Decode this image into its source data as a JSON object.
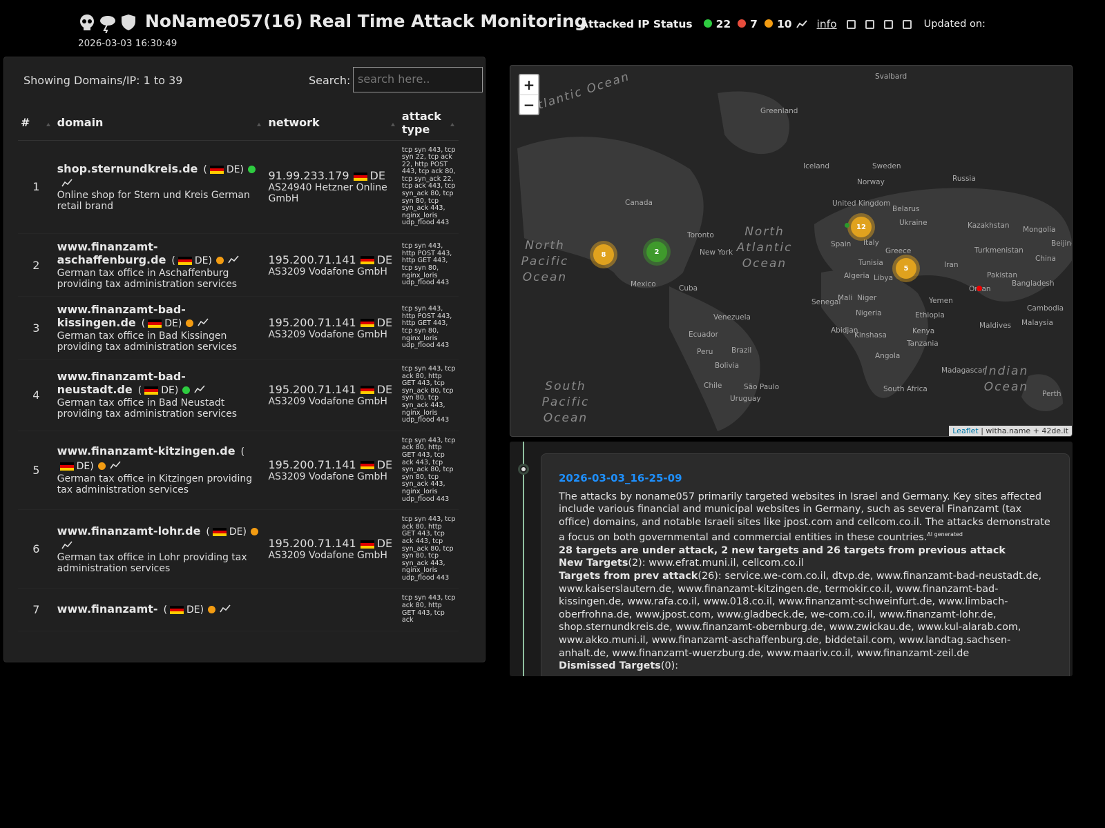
{
  "header": {
    "title": "NoName057(16) Real Time Attack Monitoring",
    "updated_date": "2026-03-03 16:30:49",
    "status_label": "Attacked IP Status",
    "status": [
      {
        "color": "#2ecc40",
        "count": 22
      },
      {
        "color": "#e74c3c",
        "count": 7
      },
      {
        "color": "#f39c12",
        "count": 10
      }
    ],
    "info": "info",
    "updated_label": "Updated on:"
  },
  "table": {
    "showing": "Showing Domains/IP: 1 to 39",
    "search_label": "Search:",
    "search_placeholder": "search here..",
    "columns": [
      "#",
      "domain",
      "network",
      "attack type"
    ],
    "rows": [
      {
        "num": 1,
        "domain": "shop.sternundkreis.de",
        "country": "DE",
        "status_color": "#2ecc40",
        "description": "Online shop for Stern und Kreis German retail brand",
        "ip": "91.99.233.179",
        "ip_country": "DE",
        "asn": "AS24940 Hetzner Online GmbH",
        "attack": "tcp syn 443, tcp syn 22, tcp ack 22, http POST 443, tcp ack 80, tcp syn_ack 22, tcp ack 443, tcp syn_ack 80, tcp syn 80, tcp syn_ack 443, nginx_loris udp_flood 443"
      },
      {
        "num": 2,
        "domain": "www.finanzamt-aschaffenburg.de",
        "country": "DE",
        "status_color": "#f39c12",
        "description": "German tax office in Aschaffenburg providing tax administration services",
        "ip": "195.200.71.141",
        "ip_country": "DE",
        "asn": "AS3209 Vodafone GmbH",
        "attack": "tcp syn 443, http POST 443, http GET 443, tcp syn 80, nginx_loris udp_flood 443"
      },
      {
        "num": 3,
        "domain": "www.finanzamt-bad-kissingen.de",
        "country": "DE",
        "status_color": "#f39c12",
        "description": "German tax office in Bad Kissingen providing tax administration services",
        "ip": "195.200.71.141",
        "ip_country": "DE",
        "asn": "AS3209 Vodafone GmbH",
        "attack": "tcp syn 443, http POST 443, http GET 443, tcp syn 80, nginx_loris udp_flood 443"
      },
      {
        "num": 4,
        "domain": "www.finanzamt-bad-neustadt.de",
        "country": "DE",
        "status_color": "#2ecc40",
        "description": "German tax office in Bad Neustadt providing tax administration services",
        "ip": "195.200.71.141",
        "ip_country": "DE",
        "asn": "AS3209 Vodafone GmbH",
        "attack": "tcp syn 443, tcp ack 80, http GET 443, tcp syn_ack 80, tcp syn 80, tcp syn_ack 443, nginx_loris udp_flood 443"
      },
      {
        "num": 5,
        "domain": "www.finanzamt-kitzingen.de",
        "country": "DE",
        "status_color": "#f39c12",
        "description": "German tax office in Kitzingen providing tax administration services",
        "ip": "195.200.71.141",
        "ip_country": "DE",
        "asn": "AS3209 Vodafone GmbH",
        "attack": "tcp syn 443, tcp ack 80, http GET 443, tcp ack 443, tcp syn_ack 80, tcp syn 80, tcp syn_ack 443, nginx_loris udp_flood 443"
      },
      {
        "num": 6,
        "domain": "www.finanzamt-lohr.de",
        "country": "DE",
        "status_color": "#f39c12",
        "description": "German tax office in Lohr providing tax administration services",
        "ip": "195.200.71.141",
        "ip_country": "DE",
        "asn": "AS3209 Vodafone GmbH",
        "attack": "tcp syn 443, tcp ack 80, http GET 443, tcp ack 443, tcp syn_ack 80, tcp syn 80, tcp syn_ack 443, nginx_loris udp_flood 443"
      },
      {
        "num": 7,
        "domain": "www.finanzamt-",
        "country": "DE",
        "status_color": "#f39c12",
        "description": "",
        "ip": "",
        "ip_country": "",
        "asn": "",
        "attack": "tcp syn 443, tcp ack 80, http GET 443, tcp ack"
      }
    ]
  },
  "map": {
    "zoom_in": "+",
    "zoom_out": "−",
    "attribution_link": "Leaflet",
    "attribution": "| witha.name + 42de.it",
    "labels": [
      "Atlantic Ocean",
      "Greenland",
      "Svalbard",
      "Iceland",
      "Sweden",
      "Norway",
      "Russia",
      "Canada",
      "United Kingdom",
      "Belarus",
      "Ukraine",
      "Kazakhstan",
      "Mongolia",
      "Toronto",
      "New York",
      "North Atlantic Ocean",
      "North Pacific Ocean",
      "Beijing",
      "Spain",
      "Italy",
      "Greece",
      "Turkmenistan",
      "Mexico",
      "Cuba",
      "Tunisia",
      "Algeria",
      "Libya",
      "Iran",
      "Pakistan",
      "Bangladesh",
      "China",
      "Oman",
      "Mali",
      "Niger",
      "Yemen",
      "Senegal",
      "Nigeria",
      "Ethiopia",
      "Venezuela",
      "Cambodia",
      "Maldives",
      "Malaysia",
      "Abidjan",
      "Kinshasa",
      "Kenya",
      "Ecuador",
      "Brazil",
      "Tanzania",
      "Peru",
      "Angola",
      "Bolivia",
      "Madagascar",
      "Indian Ocean",
      "South Pacific Ocean",
      "Chile",
      "São Paulo",
      "South Africa",
      "Uruguay",
      "Perth"
    ],
    "clusters": [
      {
        "count": 8,
        "color": "#e0a21e"
      },
      {
        "count": 2,
        "color": "#3f9a2c"
      },
      {
        "count": 12,
        "color": "#e0a21e"
      },
      {
        "count": 5,
        "color": "#e0a21e"
      }
    ]
  },
  "timeline": {
    "date": "2026-03-03_16-25-09",
    "summary": "The attacks by noname057 primarily targeted websites in Israel and Germany. Key sites affected include various financial and municipal websites in Germany, such as several Finanzamt (tax office) domains, and notable Israeli sites like jpost.com and cellcom.co.il. The attacks demonstrate a focus on both governmental and commercial entities in these countries.",
    "ai_note": "AI generated",
    "headline": "28 targets are under attack, 2 new targets and 26 targets from previous attack",
    "new_label": "New Targets",
    "new_text": "(2): www.efrat.muni.il, cellcom.co.il",
    "prev_label": "Targets from prev attack",
    "prev_text": "(26): service.we-com.co.il, dtvp.de, www.finanzamt-bad-neustadt.de, www.kaiserslautern.de, www.finanzamt-kitzingen.de, termokir.co.il, www.finanzamt-bad-kissingen.de, www.rafa.co.il, www.018.co.il, www.finanzamt-schweinfurt.de, www.limbach-oberfrohna.de, www.jpost.com, www.gladbeck.de, we-com.co.il, www.finanzamt-lohr.de, shop.sternundkreis.de, www.finanzamt-obernburg.de, www.zwickau.de, www.kul-alarab.com, www.akko.muni.il, www.finanzamt-aschaffenburg.de, biddetail.com, www.landtag.sachsen-anhalt.de, www.finanzamt-wuerzburg.de, www.maariv.co.il, www.finanzamt-zeil.de",
    "dismissed_label": "Dismissed Targets",
    "dismissed_text": "(0):"
  }
}
